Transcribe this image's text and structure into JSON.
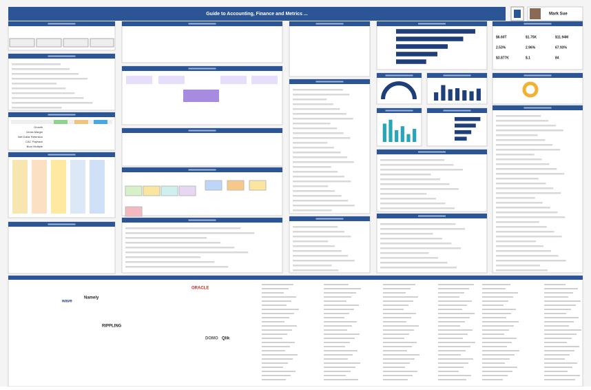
{
  "header": {
    "title": "Guide to Accounting, Finance and Metrics ...",
    "user": "Mark Sue"
  },
  "metrics_table": {
    "rows": [
      "Growth",
      "Gross Margin",
      "Net Dollar Retention",
      "CAC Payback",
      "Burn Multiple"
    ]
  },
  "kpis": [
    "$6.60T",
    "$1.75K",
    "$11.94M",
    "2.53%",
    "2.96%",
    "67.93%",
    "$3.877K",
    "$.1",
    "84"
  ],
  "logos": [
    "wave",
    "ORACLE",
    "Namely",
    "RIPPLING",
    "Qlik",
    "DOMO"
  ],
  "charts": [
    {
      "type": "bar",
      "orientation": "horizontal",
      "color": "#1f3f7a",
      "xlim": [
        0,
        100
      ],
      "values": [
        92,
        78,
        60,
        48,
        35
      ]
    },
    {
      "type": "bar",
      "orientation": "vertical",
      "color": "#1f3f7a",
      "ylim": [
        0,
        100
      ],
      "values": [
        40,
        75,
        55,
        60,
        50,
        45,
        58
      ]
    },
    {
      "type": "bar",
      "orientation": "vertical",
      "color": "#26a6b8",
      "ylim": [
        0,
        100
      ],
      "values": [
        70,
        85,
        45,
        60,
        30,
        50
      ]
    },
    {
      "type": "bar",
      "orientation": "horizontal",
      "color": "#1f3f7a",
      "xlim": [
        0,
        100
      ],
      "values": [
        85,
        70,
        55,
        40
      ]
    }
  ]
}
